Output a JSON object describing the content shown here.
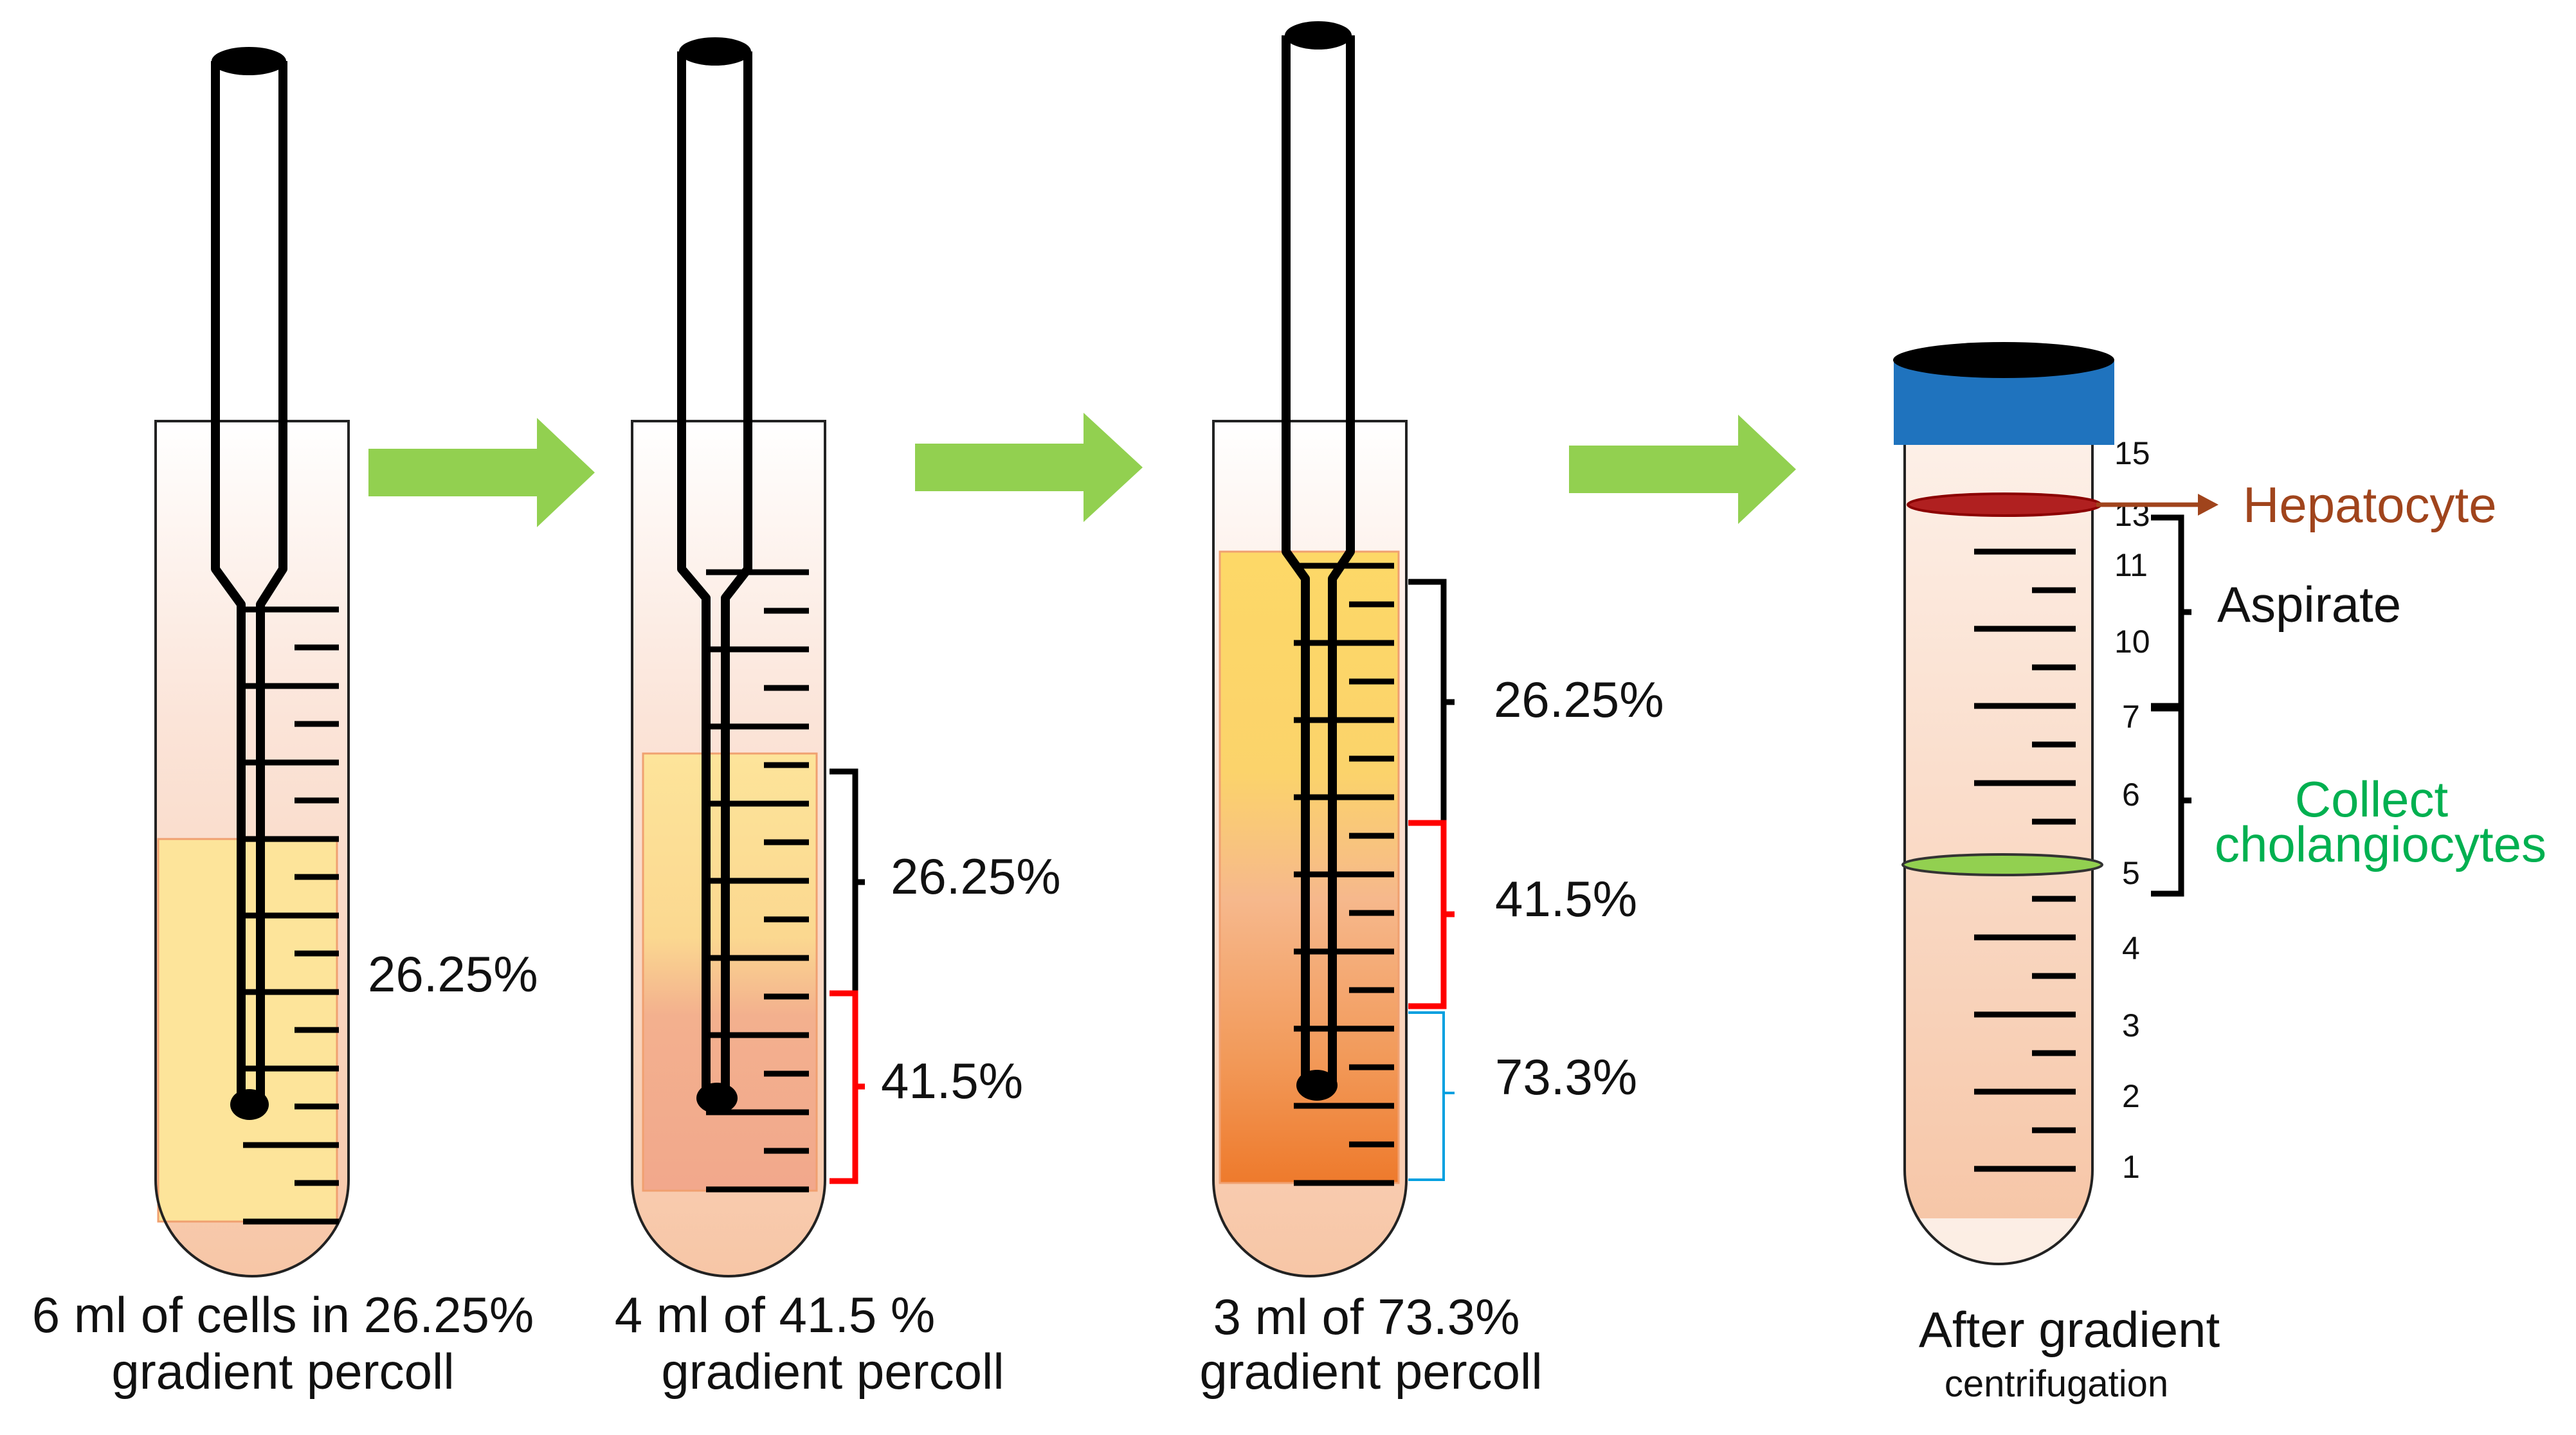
{
  "steps": [
    {
      "caption_line1": "6 ml of cells in 26.25%",
      "caption_line2": "gradient percoll",
      "layers": [
        "26.25%"
      ]
    },
    {
      "caption_line1": "4 ml of 41.5 %",
      "caption_line2": "gradient percoll",
      "layers": [
        "26.25%",
        "41.5%"
      ]
    },
    {
      "caption_line1": "3 ml of 73.3%",
      "caption_line2": "gradient percoll",
      "layers": [
        "26.25%",
        "41.5%",
        "73.3%"
      ]
    }
  ],
  "result": {
    "caption_line1": "After gradient",
    "caption_line2": "centrifugation",
    "scale_numbers": [
      "15",
      "13",
      "11",
      "10",
      "7",
      "6",
      "5",
      "4",
      "3",
      "2",
      "1"
    ],
    "hepatocyte_label": "Hepatocyte",
    "aspirate_label": "Aspirate",
    "collect_line1": "Collect",
    "collect_line2": "cholangiocytes"
  },
  "colors": {
    "arrow": "#92d050",
    "cap": "#1f73be",
    "hepatocyte": "#a0441c",
    "cholangiocyte_text": "#00b050",
    "cholangiocyte_band": "#92d050",
    "bracket_26": "#000000",
    "bracket_41": "#ff0000",
    "bracket_73": "#00a0e0"
  }
}
